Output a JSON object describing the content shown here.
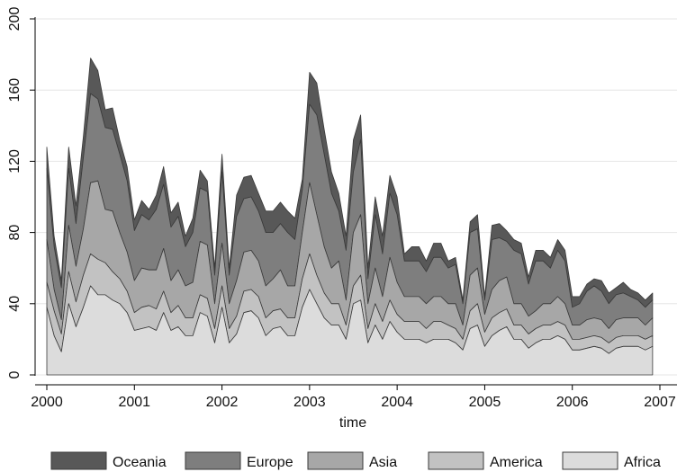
{
  "chart_data": {
    "type": "area",
    "stacked": true,
    "title": "",
    "xlabel": "time",
    "ylabel": "",
    "xlim": [
      2000,
      2007
    ],
    "ylim": [
      0,
      200
    ],
    "xticks": [
      "2000",
      "2001",
      "2002",
      "2003",
      "2004",
      "2005",
      "2006",
      "2007"
    ],
    "yticks": [
      "0",
      "40",
      "80",
      "120",
      "160",
      "200"
    ],
    "grid": true,
    "legend_position": "bottom",
    "x": [
      2000.0,
      2000.083,
      2000.167,
      2000.25,
      2000.333,
      2000.417,
      2000.5,
      2000.583,
      2000.667,
      2000.75,
      2000.833,
      2000.917,
      2001.0,
      2001.083,
      2001.167,
      2001.25,
      2001.333,
      2001.417,
      2001.5,
      2001.583,
      2001.667,
      2001.75,
      2001.833,
      2001.917,
      2002.0,
      2002.083,
      2002.167,
      2002.25,
      2002.333,
      2002.417,
      2002.5,
      2002.583,
      2002.667,
      2002.75,
      2002.833,
      2002.917,
      2003.0,
      2003.083,
      2003.167,
      2003.25,
      2003.333,
      2003.417,
      2003.5,
      2003.583,
      2003.667,
      2003.75,
      2003.833,
      2003.917,
      2004.0,
      2004.083,
      2004.167,
      2004.25,
      2004.333,
      2004.417,
      2004.5,
      2004.583,
      2004.667,
      2004.75,
      2004.833,
      2004.917,
      2005.0,
      2005.083,
      2005.167,
      2005.25,
      2005.333,
      2005.417,
      2005.5,
      2005.583,
      2005.667,
      2005.75,
      2005.833,
      2005.917,
      2006.0,
      2006.083,
      2006.167,
      2006.25,
      2006.333,
      2006.417,
      2006.5,
      2006.583,
      2006.667,
      2006.75,
      2006.833,
      2006.917
    ],
    "series": [
      {
        "name": "Africa",
        "color": "#dcdcdc",
        "values": [
          38,
          22,
          13,
          40,
          27,
          38,
          50,
          45,
          45,
          42,
          40,
          35,
          25,
          26,
          27,
          25,
          35,
          25,
          27,
          22,
          22,
          35,
          33,
          18,
          38,
          18,
          23,
          35,
          36,
          32,
          22,
          26,
          27,
          22,
          22,
          38,
          48,
          40,
          32,
          28,
          28,
          20,
          40,
          42,
          18,
          28,
          20,
          30,
          24,
          20,
          20,
          20,
          18,
          20,
          20,
          20,
          18,
          14,
          26,
          28,
          16,
          22,
          25,
          27,
          20,
          20,
          15,
          18,
          20,
          20,
          22,
          20,
          14,
          14,
          15,
          16,
          15,
          12,
          15,
          16,
          16,
          16,
          14,
          16
        ]
      },
      {
        "name": "America",
        "color": "#c2c2c2",
        "values": [
          14,
          14,
          10,
          18,
          14,
          18,
          18,
          20,
          18,
          16,
          14,
          12,
          10,
          12,
          12,
          12,
          12,
          10,
          12,
          10,
          10,
          10,
          10,
          8,
          12,
          8,
          10,
          12,
          12,
          12,
          10,
          10,
          10,
          10,
          10,
          16,
          20,
          16,
          14,
          12,
          12,
          8,
          10,
          14,
          8,
          12,
          10,
          12,
          10,
          10,
          10,
          10,
          8,
          10,
          10,
          8,
          8,
          6,
          10,
          12,
          8,
          10,
          10,
          10,
          8,
          8,
          8,
          8,
          8,
          8,
          8,
          8,
          6,
          6,
          6,
          6,
          6,
          6,
          6,
          6,
          6,
          6,
          6,
          6
        ]
      },
      {
        "name": "Asia",
        "color": "#a7a7a7",
        "values": [
          24,
          12,
          8,
          26,
          20,
          26,
          40,
          44,
          30,
          34,
          26,
          22,
          18,
          22,
          20,
          22,
          24,
          18,
          20,
          18,
          20,
          30,
          30,
          14,
          24,
          14,
          20,
          22,
          22,
          20,
          18,
          18,
          22,
          18,
          18,
          26,
          40,
          34,
          26,
          20,
          24,
          14,
          30,
          34,
          14,
          20,
          14,
          24,
          18,
          14,
          14,
          14,
          14,
          14,
          14,
          12,
          14,
          8,
          20,
          20,
          10,
          16,
          18,
          18,
          12,
          12,
          10,
          10,
          12,
          12,
          14,
          12,
          8,
          8,
          10,
          10,
          10,
          8,
          10,
          10,
          10,
          10,
          8,
          10
        ]
      },
      {
        "name": "Europe",
        "color": "#7e7e7e",
        "values": [
          40,
          24,
          18,
          32,
          24,
          40,
          50,
          46,
          46,
          46,
          44,
          40,
          28,
          30,
          28,
          34,
          36,
          30,
          30,
          22,
          28,
          30,
          30,
          16,
          40,
          16,
          36,
          30,
          30,
          28,
          30,
          26,
          26,
          30,
          26,
          24,
          44,
          56,
          52,
          42,
          28,
          28,
          34,
          42,
          14,
          30,
          24,
          36,
          38,
          20,
          20,
          20,
          18,
          22,
          22,
          20,
          22,
          12,
          24,
          22,
          8,
          28,
          24,
          20,
          30,
          28,
          18,
          28,
          24,
          20,
          26,
          24,
          10,
          12,
          16,
          18,
          16,
          14,
          14,
          14,
          12,
          10,
          10,
          10
        ]
      },
      {
        "name": "Oceania",
        "color": "#585858",
        "values": [
          12,
          6,
          4,
          12,
          10,
          12,
          20,
          16,
          10,
          12,
          8,
          8,
          6,
          8,
          6,
          8,
          10,
          8,
          8,
          6,
          8,
          10,
          6,
          4,
          10,
          4,
          12,
          12,
          12,
          10,
          12,
          12,
          12,
          12,
          12,
          6,
          18,
          18,
          14,
          12,
          10,
          8,
          18,
          14,
          6,
          10,
          10,
          10,
          10,
          4,
          8,
          8,
          6,
          8,
          8,
          4,
          4,
          2,
          6,
          8,
          2,
          8,
          8,
          6,
          6,
          6,
          4,
          6,
          6,
          6,
          6,
          6,
          6,
          4,
          4,
          4,
          6,
          6,
          4,
          6,
          4,
          4,
          4,
          4
        ]
      }
    ],
    "legend_order": [
      "Oceania",
      "Europe",
      "Asia",
      "America",
      "Africa"
    ]
  }
}
